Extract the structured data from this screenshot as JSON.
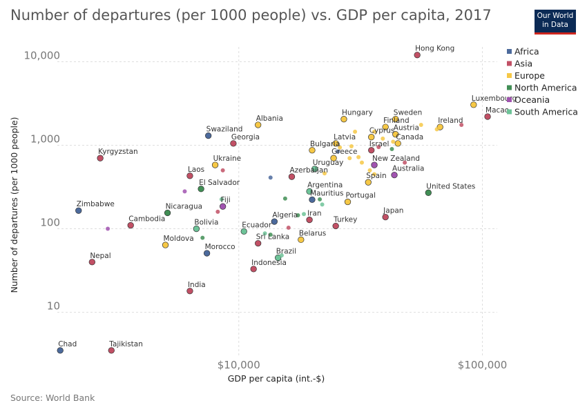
{
  "title": "Number of departures (per 1000 people) vs. GDP per capita, 2017",
  "logo": {
    "line1": "Our World",
    "line2": "in Data",
    "bg": "#0b2a55",
    "accent": "#ce261e"
  },
  "source": "Source: World Bank",
  "chart_data": {
    "type": "scatter",
    "xlabel": "GDP per capita (int.-$)",
    "ylabel": "Number of departures (per 1000 people)",
    "x_scale": "log",
    "y_scale": "log",
    "xlim": [
      1800,
      115000
    ],
    "ylim": [
      3,
      15000
    ],
    "x_ticks": [
      {
        "value": 10000,
        "label": "$10,000"
      },
      {
        "value": 100000,
        "label": "$100,000"
      }
    ],
    "y_ticks": [
      {
        "value": 10,
        "label": "10"
      },
      {
        "value": 100,
        "label": "100"
      },
      {
        "value": 1000,
        "label": "1,000"
      },
      {
        "value": 10000,
        "label": "10,000"
      }
    ],
    "grid": true,
    "legend_position": "right",
    "series": [
      {
        "name": "Africa",
        "color": "#4c6a9c",
        "points": [
          {
            "x": 2200,
            "y": 165,
            "label": "Zimbabwe"
          },
          {
            "x": 1850,
            "y": 3.5,
            "label": "Chad"
          },
          {
            "x": 7500,
            "y": 1300,
            "label": "Swaziland"
          },
          {
            "x": 7400,
            "y": 51,
            "label": "Morocco"
          },
          {
            "x": 14000,
            "y": 122,
            "label": "Algeria"
          },
          {
            "x": 20000,
            "y": 223,
            "label": "Mauritius"
          },
          {
            "x": 13500,
            "y": 410
          },
          {
            "x": 25500,
            "y": 840
          }
        ]
      },
      {
        "name": "Asia",
        "color": "#c15065",
        "points": [
          {
            "x": 54000,
            "y": 12000,
            "label": "Hong Kong"
          },
          {
            "x": 105000,
            "y": 2200,
            "label": "Macao"
          },
          {
            "x": 2700,
            "y": 700,
            "label": "Kyrgyzstan"
          },
          {
            "x": 3000,
            "y": 3.5,
            "label": "Tajikistan"
          },
          {
            "x": 2500,
            "y": 40,
            "label": "Nepal"
          },
          {
            "x": 3600,
            "y": 110,
            "label": "Cambodia"
          },
          {
            "x": 6300,
            "y": 430,
            "label": "Laos"
          },
          {
            "x": 6300,
            "y": 18,
            "label": "India"
          },
          {
            "x": 9500,
            "y": 1050,
            "label": "Georgia"
          },
          {
            "x": 11500,
            "y": 33,
            "label": "Indonesia"
          },
          {
            "x": 12000,
            "y": 67,
            "label": "Sri Lanka"
          },
          {
            "x": 16500,
            "y": 420,
            "label": "Azerbaijan"
          },
          {
            "x": 19500,
            "y": 128,
            "label": "Iran"
          },
          {
            "x": 25000,
            "y": 108,
            "label": "Turkey"
          },
          {
            "x": 35000,
            "y": 870,
            "label": "Israel"
          },
          {
            "x": 40000,
            "y": 138,
            "label": "Japan"
          },
          {
            "x": 8600,
            "y": 500
          },
          {
            "x": 8200,
            "y": 160
          },
          {
            "x": 16000,
            "y": 103
          },
          {
            "x": 37500,
            "y": 950
          },
          {
            "x": 48000,
            "y": 620
          },
          {
            "x": 82000,
            "y": 1750
          }
        ]
      },
      {
        "name": "Europe",
        "color": "#f6c846",
        "points": [
          {
            "x": 92000,
            "y": 3050,
            "label": "Luxembourg"
          },
          {
            "x": 44000,
            "y": 2050,
            "label": "Sweden"
          },
          {
            "x": 40000,
            "y": 1650,
            "label": "Finland"
          },
          {
            "x": 67000,
            "y": 1650,
            "label": "Ireland"
          },
          {
            "x": 44000,
            "y": 1350,
            "label": "Austria"
          },
          {
            "x": 27000,
            "y": 2050,
            "label": "Hungary"
          },
          {
            "x": 12000,
            "y": 1750,
            "label": "Albania"
          },
          {
            "x": 35000,
            "y": 1250,
            "label": "Cyprus"
          },
          {
            "x": 25000,
            "y": 1050,
            "label": "Latvia"
          },
          {
            "x": 45000,
            "y": 1050,
            "label": "Canada"
          },
          {
            "x": 20000,
            "y": 870,
            "label": "Bulgaria"
          },
          {
            "x": 24500,
            "y": 700,
            "label": "Greece"
          },
          {
            "x": 8000,
            "y": 580,
            "label": "Ukraine"
          },
          {
            "x": 34000,
            "y": 360,
            "label": "Spain"
          },
          {
            "x": 28000,
            "y": 210,
            "label": "Portugal"
          },
          {
            "x": 18000,
            "y": 74,
            "label": "Belarus"
          },
          {
            "x": 5000,
            "y": 64,
            "label": "Moldova"
          },
          {
            "x": 56000,
            "y": 1750
          },
          {
            "x": 65000,
            "y": 1550
          },
          {
            "x": 30000,
            "y": 1450
          },
          {
            "x": 36000,
            "y": 1450
          },
          {
            "x": 39000,
            "y": 1200
          },
          {
            "x": 43000,
            "y": 1100
          },
          {
            "x": 29000,
            "y": 970
          },
          {
            "x": 26000,
            "y": 940
          },
          {
            "x": 31000,
            "y": 720
          },
          {
            "x": 32000,
            "y": 620
          },
          {
            "x": 28500,
            "y": 700
          },
          {
            "x": 22500,
            "y": 460
          },
          {
            "x": 34500,
            "y": 500
          },
          {
            "x": 36000,
            "y": 450
          }
        ]
      },
      {
        "name": "North America",
        "color": "#418e55",
        "points": [
          {
            "x": 60000,
            "y": 270,
            "label": "United States"
          },
          {
            "x": 42500,
            "y": 900
          },
          {
            "x": 7000,
            "y": 300,
            "label": "El Salvador"
          },
          {
            "x": 5100,
            "y": 155,
            "label": "Nicaragua"
          },
          {
            "x": 7100,
            "y": 78
          },
          {
            "x": 15500,
            "y": 230
          },
          {
            "x": 21500,
            "y": 225
          },
          {
            "x": 13500,
            "y": 85
          },
          {
            "x": 17500,
            "y": 145
          }
        ]
      },
      {
        "name": "Oceania",
        "color": "#a154b0",
        "points": [
          {
            "x": 36000,
            "y": 580,
            "label": "New Zealand"
          },
          {
            "x": 43500,
            "y": 440,
            "label": "Australia"
          },
          {
            "x": 8600,
            "y": 185,
            "label": "Fiji"
          },
          {
            "x": 2900,
            "y": 100
          },
          {
            "x": 6000,
            "y": 280
          }
        ]
      },
      {
        "name": "South America",
        "color": "#6dc398",
        "points": [
          {
            "x": 20500,
            "y": 520,
            "label": "Uruguay"
          },
          {
            "x": 19500,
            "y": 280,
            "label": "Argentina"
          },
          {
            "x": 6700,
            "y": 100,
            "label": "Bolivia"
          },
          {
            "x": 10500,
            "y": 93,
            "label": "Ecuador"
          },
          {
            "x": 14500,
            "y": 45,
            "label": "Brazil"
          },
          {
            "x": 22000,
            "y": 195
          },
          {
            "x": 8500,
            "y": 225
          },
          {
            "x": 12800,
            "y": 88
          },
          {
            "x": 15000,
            "y": 48
          },
          {
            "x": 18500,
            "y": 150
          }
        ]
      }
    ]
  }
}
